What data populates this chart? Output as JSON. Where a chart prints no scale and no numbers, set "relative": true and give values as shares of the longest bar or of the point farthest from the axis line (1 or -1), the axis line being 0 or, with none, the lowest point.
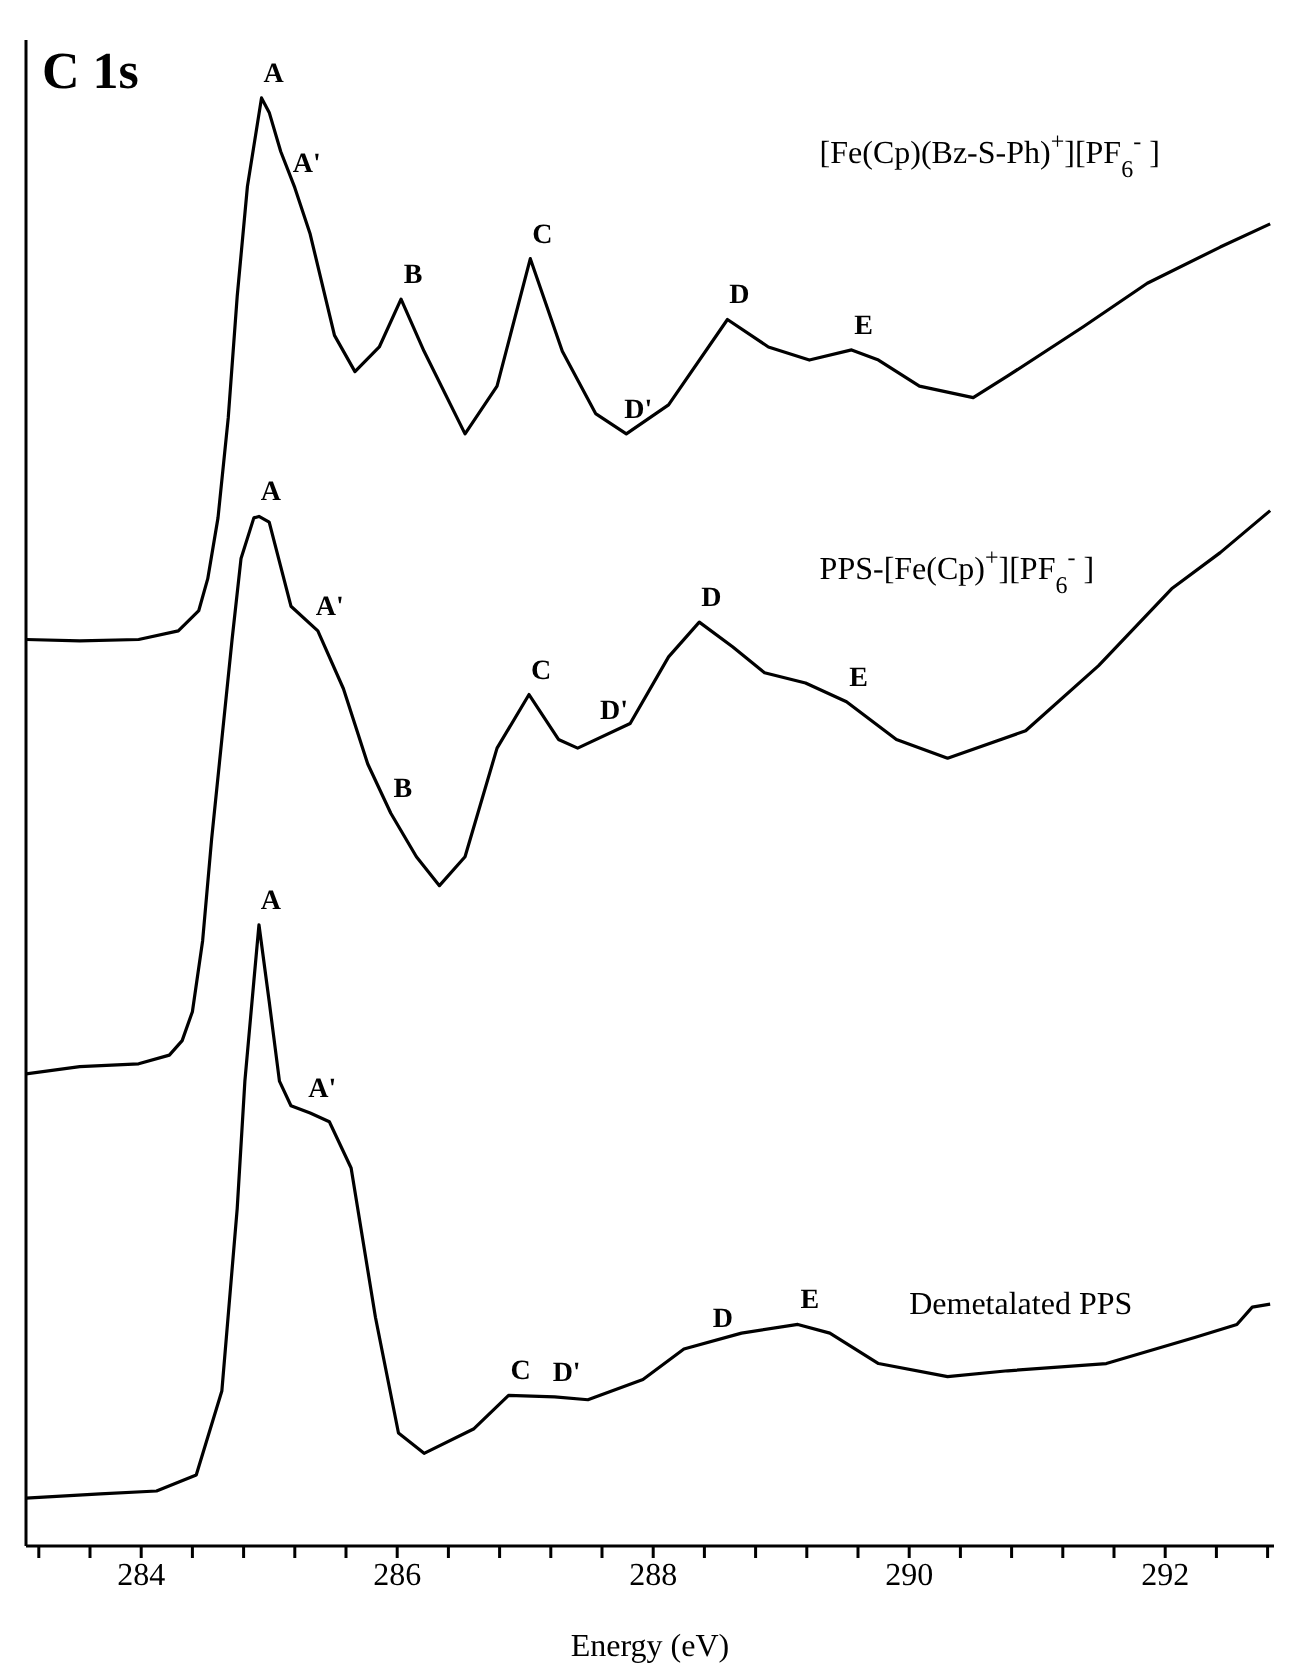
{
  "chart_data": {
    "type": "line",
    "title": "C 1s",
    "xlabel": "Energy (eV)",
    "relative": true,
    "marker": "none",
    "line_style": "solid",
    "xlim": [
      283.1,
      292.85
    ],
    "xticks": [
      {
        "value": 283.2,
        "label": null
      },
      {
        "value": 283.6,
        "label": null
      },
      284,
      {
        "value": 284.4,
        "label": null
      },
      {
        "value": 284.8,
        "label": null
      },
      {
        "value": 285.2,
        "label": null
      },
      {
        "value": 285.6,
        "label": null
      },
      286,
      {
        "value": 286.4,
        "label": null
      },
      {
        "value": 286.8,
        "label": null
      },
      {
        "value": 287.2,
        "label": null
      },
      {
        "value": 287.6,
        "label": null
      },
      288,
      {
        "value": 288.4,
        "label": null
      },
      {
        "value": 288.8,
        "label": null
      },
      {
        "value": 289.2,
        "label": null
      },
      {
        "value": 289.6,
        "label": null
      },
      290,
      {
        "value": 290.4,
        "label": null
      },
      {
        "value": 290.8,
        "label": null
      },
      {
        "value": 291.2,
        "label": null
      },
      {
        "value": 291.6,
        "label": null
      },
      292,
      {
        "value": 292.4,
        "label": null
      },
      {
        "value": 292.8,
        "label": null
      }
    ],
    "series": [
      {
        "name": "[Fe(Cp)(Bz-S-Ph)$^{+}$][PF$_{6}$$^{-}$ ]",
        "color": "#000000",
        "x": [
          283.1,
          283.52,
          283.98,
          284.29,
          284.45,
          284.52,
          284.6,
          284.68,
          284.75,
          284.83,
          284.94,
          285.0,
          285.09,
          285.2,
          285.32,
          285.51,
          285.67,
          285.86,
          286.03,
          286.21,
          286.53,
          286.78,
          287.04,
          287.29,
          287.55,
          287.79,
          288.12,
          288.58,
          288.9,
          289.22,
          289.55,
          289.76,
          290.08,
          290.5,
          290.77,
          291.36,
          291.86,
          292.43,
          292.82
        ],
        "values": [
          0.626,
          0.625,
          0.626,
          0.632,
          0.646,
          0.668,
          0.71,
          0.779,
          0.863,
          0.939,
          1.0,
          0.99,
          0.963,
          0.938,
          0.906,
          0.836,
          0.811,
          0.828,
          0.861,
          0.825,
          0.768,
          0.801,
          0.889,
          0.825,
          0.782,
          0.768,
          0.788,
          0.847,
          0.828,
          0.819,
          0.826,
          0.819,
          0.801,
          0.793,
          0.808,
          0.842,
          0.872,
          0.897,
          0.913
        ]
      },
      {
        "name": "PPS-[Fe(Cp)$^{+}$][PF$_{6}$$^{-}$ ]",
        "color": "#000000",
        "x": [
          283.1,
          283.52,
          283.98,
          284.22,
          284.32,
          284.4,
          284.48,
          284.55,
          284.63,
          284.71,
          284.78,
          284.88,
          284.92,
          285.0,
          285.17,
          285.38,
          285.58,
          285.77,
          285.95,
          286.15,
          286.33,
          286.53,
          286.78,
          287.03,
          287.26,
          287.41,
          287.82,
          288.12,
          288.36,
          288.62,
          288.87,
          289.19,
          289.51,
          289.9,
          290.3,
          290.91,
          291.48,
          292.05,
          292.43,
          292.82
        ],
        "values": [
          0.326,
          0.331,
          0.333,
          0.339,
          0.349,
          0.369,
          0.418,
          0.488,
          0.557,
          0.626,
          0.682,
          0.71,
          0.711,
          0.707,
          0.649,
          0.632,
          0.592,
          0.54,
          0.506,
          0.476,
          0.456,
          0.476,
          0.551,
          0.588,
          0.557,
          0.551,
          0.568,
          0.614,
          0.638,
          0.621,
          0.603,
          0.596,
          0.583,
          0.557,
          0.544,
          0.563,
          0.608,
          0.661,
          0.686,
          0.715
        ]
      },
      {
        "name": "Demetalated PPS",
        "color": "#000000",
        "x": [
          283.1,
          283.68,
          284.12,
          284.43,
          284.63,
          284.75,
          284.81,
          284.88,
          284.92,
          285.0,
          285.08,
          285.17,
          285.32,
          285.47,
          285.64,
          285.83,
          286.01,
          286.21,
          286.6,
          286.87,
          287.23,
          287.49,
          287.92,
          288.24,
          288.69,
          289.13,
          289.38,
          289.76,
          290.3,
          290.77,
          291.54,
          292.23,
          292.56,
          292.68,
          292.82
        ],
        "values": [
          0.033,
          0.036,
          0.038,
          0.049,
          0.107,
          0.233,
          0.321,
          0.39,
          0.429,
          0.376,
          0.321,
          0.304,
          0.299,
          0.293,
          0.261,
          0.158,
          0.078,
          0.064,
          0.081,
          0.104,
          0.103,
          0.101,
          0.115,
          0.136,
          0.147,
          0.153,
          0.147,
          0.126,
          0.117,
          0.121,
          0.126,
          0.144,
          0.153,
          0.165,
          0.167
        ]
      }
    ],
    "annotations": [
      {
        "text": "A",
        "x": 284.94,
        "y": 1.0
      },
      {
        "text": "A'",
        "x": 285.2,
        "y": 0.938
      },
      {
        "text": "B",
        "x": 286.03,
        "y": 0.861
      },
      {
        "text": "C",
        "x": 287.04,
        "y": 0.889
      },
      {
        "text": "D'",
        "x": 287.79,
        "y": 0.768
      },
      {
        "text": "D",
        "x": 288.58,
        "y": 0.847
      },
      {
        "text": "E",
        "x": 289.55,
        "y": 0.826
      },
      {
        "text": "A",
        "x": 284.92,
        "y": 0.711
      },
      {
        "text": "A'",
        "x": 285.38,
        "y": 0.632
      },
      {
        "text": "B",
        "x": 285.95,
        "y": 0.506
      },
      {
        "text": "C",
        "x": 287.03,
        "y": 0.588
      },
      {
        "text": "D'",
        "x": 287.6,
        "y": 0.56
      },
      {
        "text": "D",
        "x": 288.36,
        "y": 0.638
      },
      {
        "text": "E",
        "x": 289.51,
        "y": 0.583
      },
      {
        "text": "A",
        "x": 284.92,
        "y": 0.429
      },
      {
        "text": "A'",
        "x": 285.32,
        "y": 0.299
      },
      {
        "text": "C",
        "x": 286.87,
        "y": 0.104
      },
      {
        "text": "D'",
        "x": 287.23,
        "y": 0.103
      },
      {
        "text": "D",
        "x": 288.45,
        "y": 0.14
      },
      {
        "text": "E",
        "x": 289.13,
        "y": 0.153
      }
    ]
  }
}
